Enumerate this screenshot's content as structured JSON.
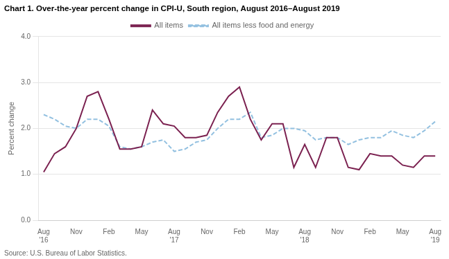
{
  "chart_data": {
    "type": "line",
    "title": "Chart 1. Over-the-year percent change in CPI-U, South region, August 2016–August 2019",
    "y_label": "Percent change",
    "annotations": [
      "Source: U.S. Bureau of Labor Statistics."
    ],
    "categories": [
      "Aug\n'16",
      null,
      null,
      "Nov",
      null,
      null,
      "Feb",
      null,
      null,
      "May",
      null,
      null,
      "Aug\n'17",
      null,
      null,
      "Nov",
      null,
      null,
      "Feb",
      null,
      null,
      "May",
      null,
      null,
      "Aug\n'18",
      null,
      null,
      "Nov",
      null,
      null,
      "Feb",
      null,
      null,
      "May",
      null,
      null,
      "Aug\n'19"
    ],
    "series": [
      {
        "name": "All items",
        "color": "#7b2150",
        "line_style": "solid",
        "values": [
          1.05,
          1.45,
          1.6,
          2.0,
          2.7,
          2.8,
          2.2,
          1.55,
          1.55,
          1.6,
          2.4,
          2.1,
          2.05,
          1.8,
          1.8,
          1.85,
          2.35,
          2.7,
          2.9,
          2.2,
          1.75,
          2.1,
          2.1,
          1.15,
          1.65,
          1.15,
          1.8,
          1.8,
          1.15,
          1.1,
          1.45,
          1.4,
          1.4,
          1.2,
          1.15,
          1.4,
          1.4
        ]
      },
      {
        "name": "All items less food and energy",
        "color": "#92c0e0",
        "line_style": "dashed",
        "values": [
          2.3,
          2.2,
          2.05,
          2.0,
          2.2,
          2.2,
          2.05,
          1.6,
          1.55,
          1.6,
          1.7,
          1.75,
          1.5,
          1.55,
          1.7,
          1.75,
          2.0,
          2.2,
          2.2,
          2.35,
          1.8,
          1.85,
          2.0,
          2.0,
          1.95,
          1.75,
          1.8,
          1.8,
          1.65,
          1.75,
          1.8,
          1.8,
          1.95,
          1.85,
          1.8,
          1.95,
          2.15
        ]
      }
    ],
    "ylim": [
      0.0,
      4.0
    ],
    "yticks": [
      {
        "value": 0,
        "label": "0.0"
      },
      {
        "value": 1,
        "label": "1.0"
      },
      {
        "value": 2,
        "label": "2.0"
      },
      {
        "value": 3,
        "label": "3.0"
      },
      {
        "value": 4,
        "label": "4.0"
      }
    ],
    "grid": true,
    "legend": "top"
  }
}
